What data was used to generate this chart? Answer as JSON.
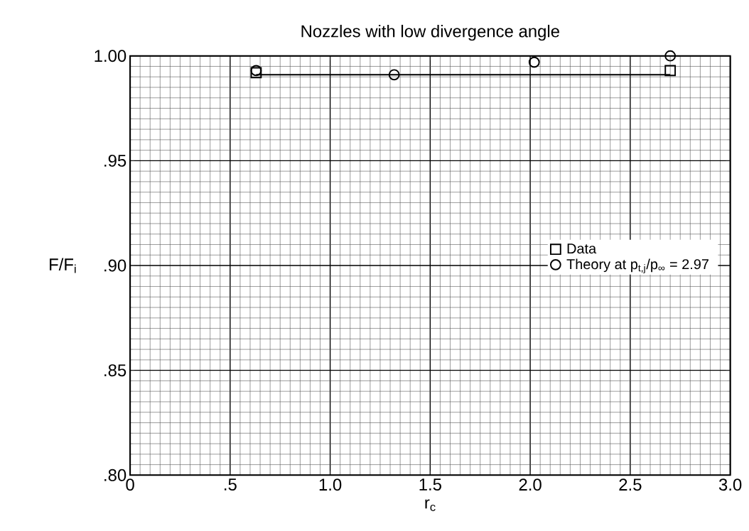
{
  "chart_data": {
    "type": "scatter",
    "title": "Nozzles with low divergence angle",
    "xlabel": "r$_{c}$",
    "ylabel": "F/F$_{i}$",
    "xlim": [
      0,
      3.0
    ],
    "ylim": [
      0.8,
      1.0
    ],
    "xticks": [
      0,
      {
        "value": 0.5,
        "label": ".5"
      },
      {
        "value": 1.0,
        "label": "1.0"
      },
      {
        "value": 1.5,
        "label": "1.5"
      },
      {
        "value": 2.0,
        "label": "2.0"
      },
      {
        "value": 2.5,
        "label": "2.5"
      },
      {
        "value": 3.0,
        "label": "3.0"
      }
    ],
    "yticks": [
      {
        "value": 0.8,
        "label": ".80"
      },
      {
        "value": 0.85,
        "label": ".85"
      },
      {
        "value": 0.9,
        "label": ".90"
      },
      {
        "value": 0.95,
        "label": ".95"
      },
      {
        "value": 1.0,
        "label": "1.00"
      }
    ],
    "grid": true,
    "legend": "right",
    "series": [
      {
        "name": "Data",
        "marker": "square",
        "color": "#000000",
        "x": [
          0.63,
          2.7
        ],
        "values": [
          0.992,
          0.993
        ]
      },
      {
        "name": "Theory at p$_{t,j}$/p$_{∞}$ = 2.97",
        "marker": "circle",
        "color": "#000000",
        "x": [
          0.63,
          1.32,
          2.02,
          2.7
        ],
        "values": [
          0.993,
          0.991,
          0.997,
          1.0
        ]
      },
      {
        "type": "line",
        "marker": "none",
        "color": "#000000",
        "x": [
          0.63,
          2.7
        ],
        "values": [
          0.991,
          0.991
        ]
      }
    ]
  }
}
